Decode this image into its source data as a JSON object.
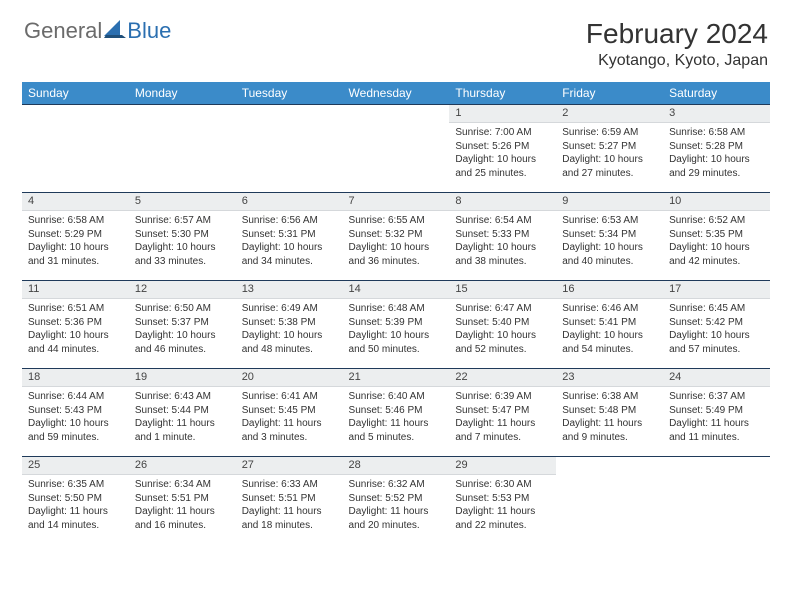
{
  "brand": {
    "part1": "General",
    "part2": "Blue"
  },
  "colors": {
    "header_bg": "#3b8bc9",
    "header_text": "#ffffff",
    "daynum_bg": "#eceeef",
    "daynum_border_top": "#1f3a5a",
    "logo_gray": "#6b6b6b",
    "logo_blue": "#2b6fb0"
  },
  "title": "February 2024",
  "location": "Kyotango, Kyoto, Japan",
  "weekdays": [
    "Sunday",
    "Monday",
    "Tuesday",
    "Wednesday",
    "Thursday",
    "Friday",
    "Saturday"
  ],
  "weeks": [
    [
      null,
      null,
      null,
      null,
      {
        "n": "1",
        "sr": "7:00 AM",
        "ss": "5:26 PM",
        "dl": "10 hours and 25 minutes."
      },
      {
        "n": "2",
        "sr": "6:59 AM",
        "ss": "5:27 PM",
        "dl": "10 hours and 27 minutes."
      },
      {
        "n": "3",
        "sr": "6:58 AM",
        "ss": "5:28 PM",
        "dl": "10 hours and 29 minutes."
      }
    ],
    [
      {
        "n": "4",
        "sr": "6:58 AM",
        "ss": "5:29 PM",
        "dl": "10 hours and 31 minutes."
      },
      {
        "n": "5",
        "sr": "6:57 AM",
        "ss": "5:30 PM",
        "dl": "10 hours and 33 minutes."
      },
      {
        "n": "6",
        "sr": "6:56 AM",
        "ss": "5:31 PM",
        "dl": "10 hours and 34 minutes."
      },
      {
        "n": "7",
        "sr": "6:55 AM",
        "ss": "5:32 PM",
        "dl": "10 hours and 36 minutes."
      },
      {
        "n": "8",
        "sr": "6:54 AM",
        "ss": "5:33 PM",
        "dl": "10 hours and 38 minutes."
      },
      {
        "n": "9",
        "sr": "6:53 AM",
        "ss": "5:34 PM",
        "dl": "10 hours and 40 minutes."
      },
      {
        "n": "10",
        "sr": "6:52 AM",
        "ss": "5:35 PM",
        "dl": "10 hours and 42 minutes."
      }
    ],
    [
      {
        "n": "11",
        "sr": "6:51 AM",
        "ss": "5:36 PM",
        "dl": "10 hours and 44 minutes."
      },
      {
        "n": "12",
        "sr": "6:50 AM",
        "ss": "5:37 PM",
        "dl": "10 hours and 46 minutes."
      },
      {
        "n": "13",
        "sr": "6:49 AM",
        "ss": "5:38 PM",
        "dl": "10 hours and 48 minutes."
      },
      {
        "n": "14",
        "sr": "6:48 AM",
        "ss": "5:39 PM",
        "dl": "10 hours and 50 minutes."
      },
      {
        "n": "15",
        "sr": "6:47 AM",
        "ss": "5:40 PM",
        "dl": "10 hours and 52 minutes."
      },
      {
        "n": "16",
        "sr": "6:46 AM",
        "ss": "5:41 PM",
        "dl": "10 hours and 54 minutes."
      },
      {
        "n": "17",
        "sr": "6:45 AM",
        "ss": "5:42 PM",
        "dl": "10 hours and 57 minutes."
      }
    ],
    [
      {
        "n": "18",
        "sr": "6:44 AM",
        "ss": "5:43 PM",
        "dl": "10 hours and 59 minutes."
      },
      {
        "n": "19",
        "sr": "6:43 AM",
        "ss": "5:44 PM",
        "dl": "11 hours and 1 minute."
      },
      {
        "n": "20",
        "sr": "6:41 AM",
        "ss": "5:45 PM",
        "dl": "11 hours and 3 minutes."
      },
      {
        "n": "21",
        "sr": "6:40 AM",
        "ss": "5:46 PM",
        "dl": "11 hours and 5 minutes."
      },
      {
        "n": "22",
        "sr": "6:39 AM",
        "ss": "5:47 PM",
        "dl": "11 hours and 7 minutes."
      },
      {
        "n": "23",
        "sr": "6:38 AM",
        "ss": "5:48 PM",
        "dl": "11 hours and 9 minutes."
      },
      {
        "n": "24",
        "sr": "6:37 AM",
        "ss": "5:49 PM",
        "dl": "11 hours and 11 minutes."
      }
    ],
    [
      {
        "n": "25",
        "sr": "6:35 AM",
        "ss": "5:50 PM",
        "dl": "11 hours and 14 minutes."
      },
      {
        "n": "26",
        "sr": "6:34 AM",
        "ss": "5:51 PM",
        "dl": "11 hours and 16 minutes."
      },
      {
        "n": "27",
        "sr": "6:33 AM",
        "ss": "5:51 PM",
        "dl": "11 hours and 18 minutes."
      },
      {
        "n": "28",
        "sr": "6:32 AM",
        "ss": "5:52 PM",
        "dl": "11 hours and 20 minutes."
      },
      {
        "n": "29",
        "sr": "6:30 AM",
        "ss": "5:53 PM",
        "dl": "11 hours and 22 minutes."
      },
      null,
      null
    ]
  ],
  "labels": {
    "sunrise": "Sunrise:",
    "sunset": "Sunset:",
    "daylight": "Daylight:"
  }
}
